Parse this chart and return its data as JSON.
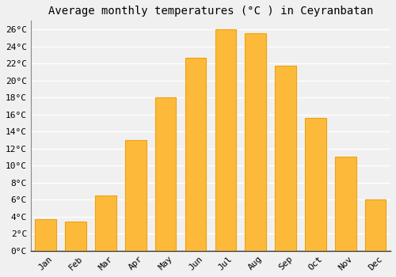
{
  "title": "Average monthly temperatures (°C ) in Ceyranbatan",
  "months": [
    "Jan",
    "Feb",
    "Mar",
    "Apr",
    "May",
    "Jun",
    "Jul",
    "Aug",
    "Sep",
    "Oct",
    "Nov",
    "Dec"
  ],
  "values": [
    3.7,
    3.4,
    6.5,
    13.0,
    18.0,
    22.7,
    26.0,
    25.5,
    21.7,
    15.6,
    11.0,
    6.0
  ],
  "bar_color": "#FDBA3A",
  "bar_edge_color": "#F0A010",
  "ylim": [
    0,
    27
  ],
  "yticks": [
    0,
    2,
    4,
    6,
    8,
    10,
    12,
    14,
    16,
    18,
    20,
    22,
    24,
    26
  ],
  "background_color": "#F0F0F0",
  "grid_color": "#FFFFFF",
  "title_fontsize": 10,
  "tick_fontsize": 8,
  "font_family": "monospace"
}
